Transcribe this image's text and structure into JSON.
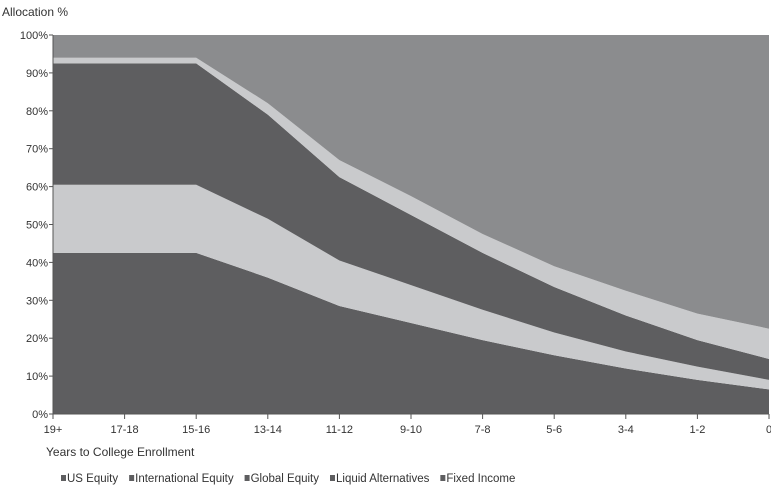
{
  "chart_data": {
    "type": "area",
    "stacked": true,
    "title": "",
    "ylabel": "Allocation %",
    "xlabel": "Years to College Enrollment",
    "ylim": [
      0,
      100
    ],
    "y_ticks": [
      "0%",
      "10%",
      "20%",
      "30%",
      "40%",
      "50%",
      "60%",
      "70%",
      "80%",
      "90%",
      "100%"
    ],
    "categories": [
      "19+",
      "17-18",
      "15-16",
      "13-14",
      "11-12",
      "9-10",
      "7-8",
      "5-6",
      "3-4",
      "1-2",
      "0"
    ],
    "series": [
      {
        "name": "US Equity",
        "color": "#5e5e60",
        "values": [
          42.5,
          42.5,
          42.5,
          36,
          28.5,
          24,
          19.5,
          15.5,
          12,
          9,
          6.5
        ]
      },
      {
        "name": "International Equity",
        "color": "#c9cacc",
        "values": [
          18,
          18,
          18,
          15.5,
          12,
          10,
          8,
          6,
          4.5,
          3.5,
          2.5
        ]
      },
      {
        "name": "Global Equity",
        "color": "#5e5e60",
        "values": [
          32,
          32,
          32,
          27.5,
          22,
          18.5,
          15,
          12,
          9.5,
          7,
          5.5
        ]
      },
      {
        "name": "Liquid Alternatives",
        "color": "#c9cacc",
        "values": [
          1.5,
          1.5,
          1.5,
          3,
          4.5,
          5,
          5,
          5.5,
          6.5,
          7,
          8
        ]
      },
      {
        "name": "Fixed Income",
        "color": "#8b8c8e",
        "values": [
          6,
          6,
          6,
          18,
          33,
          42.5,
          52.5,
          61,
          67.5,
          73.5,
          77.5
        ]
      }
    ],
    "legend_position": "bottom",
    "legend_marker_color": "#5e5e60",
    "grid": false
  }
}
